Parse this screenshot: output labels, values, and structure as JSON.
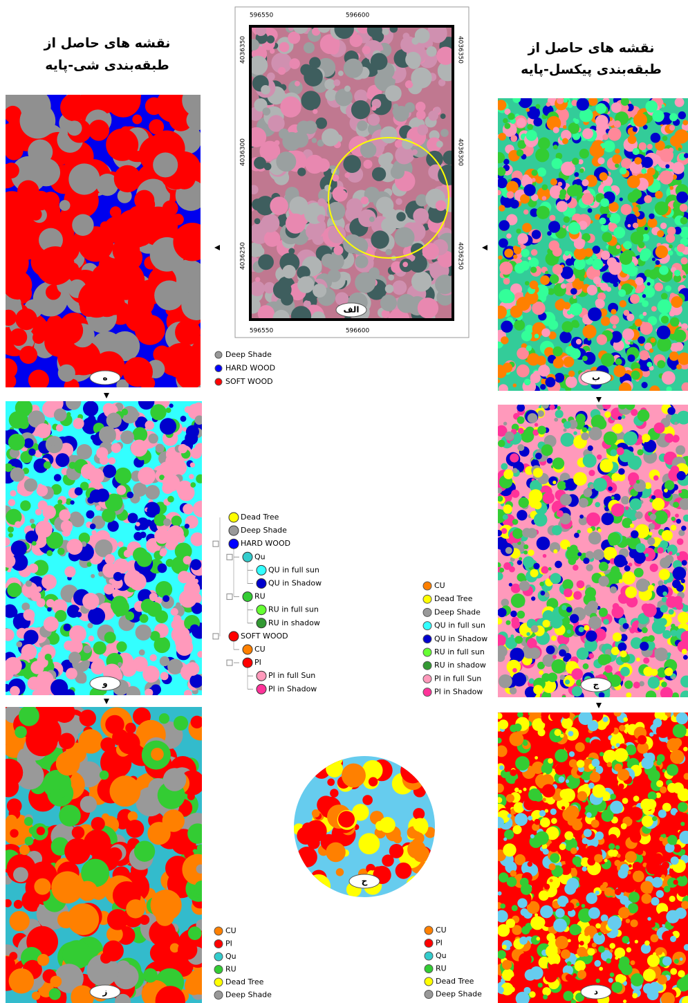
{
  "titles": {
    "object_based": [
      "نقشه های حاصل از",
      "طبقه‌بندی شی-پایه"
    ],
    "pixel_based": [
      "نقشه های حاصل از",
      "طبقه‌بندی پیکسل-پایه"
    ]
  },
  "image": {
    "label": "الف",
    "x_coords_top": [
      "596550",
      "596600"
    ],
    "x_coords_bottom": [
      "596550",
      "596600"
    ],
    "y_coords_left": [
      "4036350",
      "4036300",
      "4036250"
    ],
    "y_coords_right": [
      "4036350",
      "4036300",
      "4036250"
    ]
  },
  "panels": {
    "he": "ه",
    "be": "ب",
    "vav": "و",
    "jim": "ج",
    "ze": "ز",
    "dal": "د",
    "he_circle": "ح"
  },
  "legend_level1": [
    {
      "label": "Deep Shade",
      "color": "#999999"
    },
    {
      "label": "HARD WOOD",
      "color": "#0000ff"
    },
    {
      "label": "SOFT WOOD",
      "color": "#ff0000"
    }
  ],
  "legend_tree": [
    {
      "label": "Dead Tree",
      "color": "#ffff00"
    },
    {
      "label": "Deep Shade",
      "color": "#999999"
    },
    {
      "label": "HARD WOOD",
      "color": "#0000ff",
      "children": [
        {
          "label": "Qu",
          "color": "#33cccc",
          "children": [
            {
              "label": "QU in full sun",
              "color": "#33ffff"
            },
            {
              "label": "QU in Shadow",
              "color": "#0000cc"
            }
          ]
        },
        {
          "label": "RU",
          "color": "#33cc33",
          "children": [
            {
              "label": "RU in full sun",
              "color": "#66ff33"
            },
            {
              "label": "RU in shadow",
              "color": "#339933"
            }
          ]
        }
      ]
    },
    {
      "label": "SOFT WOOD",
      "color": "#ff0000",
      "children": [
        {
          "label": "CU",
          "color": "#ff8000"
        },
        {
          "label": "PI",
          "color": "#ff0000",
          "children": [
            {
              "label": "PI in full Sun",
              "color": "#ff99bb"
            },
            {
              "label": "PI in Shadow",
              "color": "#ff3399"
            }
          ]
        }
      ]
    }
  ],
  "legend_pixel": [
    {
      "label": "CU",
      "color": "#ff8000"
    },
    {
      "label": "Dead Tree",
      "color": "#ffff00"
    },
    {
      "label": "Deep Shade",
      "color": "#999999"
    },
    {
      "label": "QU in full sun",
      "color": "#33ffff"
    },
    {
      "label": "QU in Shadow",
      "color": "#0000cc"
    },
    {
      "label": "RU in full sun",
      "color": "#66ff33"
    },
    {
      "label": "RU in shadow",
      "color": "#339933"
    },
    {
      "label": "PI in full Sun",
      "color": "#ff99bb"
    },
    {
      "label": "PI in Shadow",
      "color": "#ff3399"
    }
  ],
  "legend_species_object": [
    {
      "label": "CU",
      "color": "#ff8000"
    },
    {
      "label": "PI",
      "color": "#ff0000"
    },
    {
      "label": "Qu",
      "color": "#33cccc"
    },
    {
      "label": "RU",
      "color": "#33cc33"
    },
    {
      "label": "Dead Tree",
      "color": "#ffff00"
    },
    {
      "label": "Deep Shade",
      "color": "#999999"
    }
  ],
  "legend_species_pixel": [
    {
      "label": "CU",
      "color": "#ff8000"
    },
    {
      "label": "PI",
      "color": "#ff0000"
    },
    {
      "label": "Qu",
      "color": "#33cccc"
    },
    {
      "label": "RU",
      "color": "#33cc33"
    },
    {
      "label": "Dead Tree",
      "color": "#ffff00"
    },
    {
      "label": "Deep Shade",
      "color": "#999999"
    }
  ]
}
